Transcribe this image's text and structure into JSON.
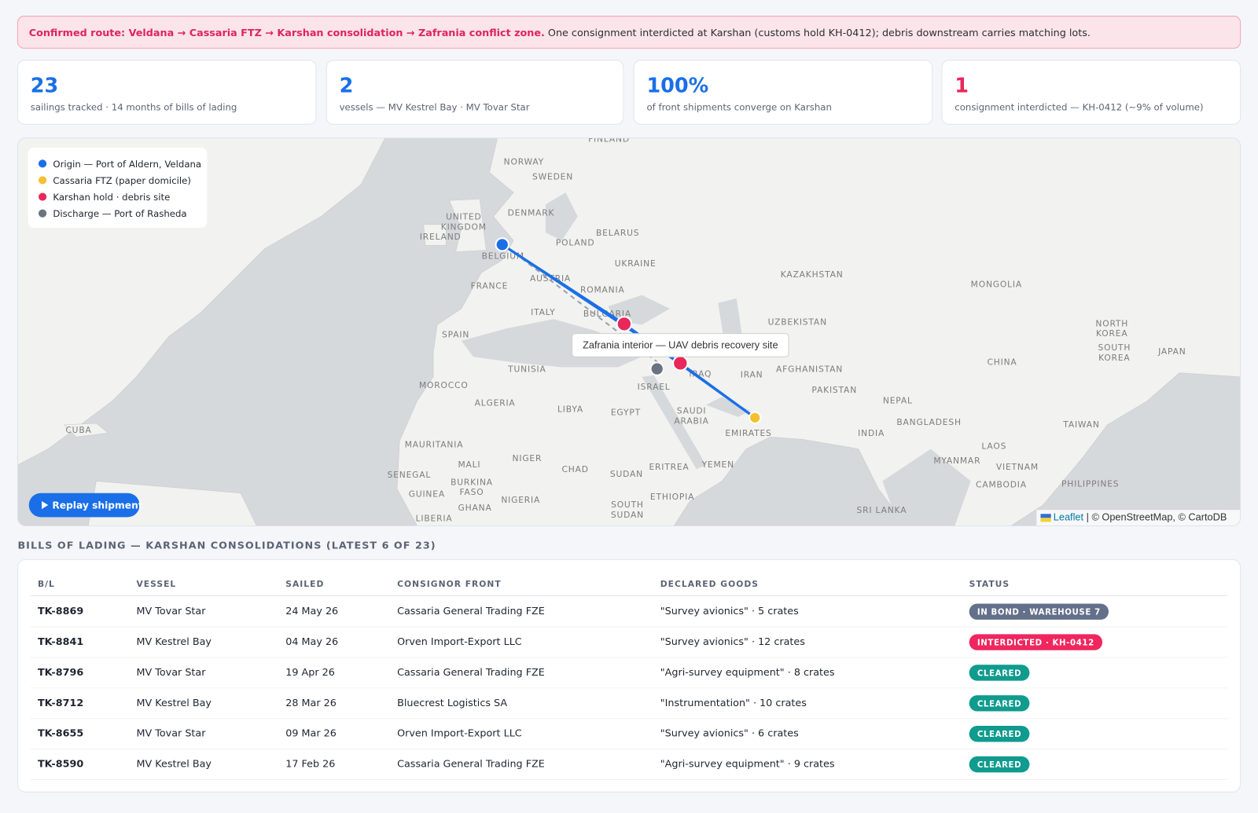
{
  "banner": {
    "lead": "Confirmed route: Veldana → Cassaria FTZ → Karshan consolidation → Zafrania conflict zone.",
    "text": "One consignment interdicted at Karshan (customs hold KH-0412); debris downstream carries matching lots."
  },
  "stats": [
    {
      "value": "23",
      "label": "sailings tracked · 14 months of bills of lading",
      "color": "#1a6fe8"
    },
    {
      "value": "2",
      "label": "vessels — MV Kestrel Bay · MV Tovar Star",
      "color": "#1a6fe8"
    },
    {
      "value": "100%",
      "label": "of front shipments converge on Karshan",
      "color": "#1a6fe8"
    },
    {
      "value": "1",
      "label": "consignment interdicted — KH-0412 (~9% of volume)",
      "color": "#e8285a"
    }
  ],
  "map": {
    "legend": [
      {
        "label": "Origin — Port of Aldern, Veldana",
        "color": "#1a6fe8"
      },
      {
        "label": "Cassaria FTZ (paper domicile)",
        "color": "#f5c02f"
      },
      {
        "label": "Karshan hold · debris site",
        "color": "#e8285a"
      },
      {
        "label": "Discharge — Port of Rasheda",
        "color": "#6b7280"
      }
    ],
    "tooltip": "Zafrania interior — UAV debris recovery site",
    "button": "Replay shipment",
    "attribution": [
      "Leaflet",
      "| © OpenStreetMap, © CartoDB"
    ],
    "labels": [
      "FINLAND",
      "NORWAY",
      "SWEDEN",
      [
        "UNITED",
        "KINGDOM"
      ],
      "IRELAND",
      "DENMARK",
      "BELARUS",
      "POLAND",
      "BELGIUM",
      "UKRAINE",
      "FRANCE",
      "AUSTRIA",
      "ROMANIA",
      "KAZAKHSTAN",
      "MONGOLIA",
      "BULGARIA",
      "ITALY",
      "SPAIN",
      "UZBEKISTAN",
      [
        "NORTH",
        "KOREA"
      ],
      [
        "SOUTH",
        "KOREA"
      ],
      "JAPAN",
      "TUNISIA",
      "IRAQ",
      "IRAN",
      "AFGHANISTAN",
      "CHINA",
      "MOROCCO",
      "ISRAEL",
      "PAKISTAN",
      "NEPAL",
      "ALGERIA",
      "LIBYA",
      "EGYPT",
      [
        "SAUDI",
        "ARABIA"
      ],
      "BANGLADESH",
      "EMIRATES",
      "INDIA",
      "TAIWAN",
      "CUBA",
      "MAURITANIA",
      "MALI",
      "NIGER",
      "CHAD",
      "ERITREA",
      "YEMEN",
      "SUDAN",
      "LAOS",
      "MYANMAR",
      "VIETNAM",
      "SENEGAL",
      [
        "BURKINA",
        "FASO"
      ],
      "GUINEA",
      "NIGERIA",
      "ETHIOPIA",
      "CAMBODIA",
      "PHILIPPINES",
      "GHANA",
      [
        "SOUTH",
        "SUDAN"
      ],
      "SRI LANKA",
      "LIBERIA"
    ]
  },
  "table": {
    "title": "BILLS OF LADING — KARSHAN CONSOLIDATIONS (LATEST 6 OF 23)",
    "columns": [
      "B/L",
      "VESSEL",
      "SAILED",
      "CONSIGNOR FRONT",
      "DECLARED GOODS",
      "STATUS"
    ],
    "rows": [
      {
        "bl": "TK-8869",
        "vessel": "MV Tovar Star",
        "sailed": "24 May 26",
        "consignor": "Cassaria General Trading FZE",
        "goods": "\"Survey avionics\" · 5 crates",
        "status": "IN BOND · WAREHOUSE 7",
        "status_color": "#64708a"
      },
      {
        "bl": "TK-8841",
        "vessel": "MV Kestrel Bay",
        "sailed": "04 May 26",
        "consignor": "Orven Import-Export LLC",
        "goods": "\"Survey avionics\" · 12 crates",
        "status": "INTERDICTED · KH-0412",
        "status_color": "#f0265e"
      },
      {
        "bl": "TK-8796",
        "vessel": "MV Tovar Star",
        "sailed": "19 Apr 26",
        "consignor": "Cassaria General Trading FZE",
        "goods": "\"Agri-survey equipment\" · 8 crates",
        "status": "CLEARED",
        "status_color": "#0f9b8e"
      },
      {
        "bl": "TK-8712",
        "vessel": "MV Kestrel Bay",
        "sailed": "28 Mar 26",
        "consignor": "Bluecrest Logistics SA",
        "goods": "\"Instrumentation\" · 10 crates",
        "status": "CLEARED",
        "status_color": "#0f9b8e"
      },
      {
        "bl": "TK-8655",
        "vessel": "MV Tovar Star",
        "sailed": "09 Mar 26",
        "consignor": "Orven Import-Export LLC",
        "goods": "\"Survey avionics\" · 6 crates",
        "status": "CLEARED",
        "status_color": "#0f9b8e"
      },
      {
        "bl": "TK-8590",
        "vessel": "MV Kestrel Bay",
        "sailed": "17 Feb 26",
        "consignor": "Cassaria General Trading FZE",
        "goods": "\"Agri-survey equipment\" · 9 crates",
        "status": "CLEARED",
        "status_color": "#0f9b8e"
      }
    ]
  }
}
